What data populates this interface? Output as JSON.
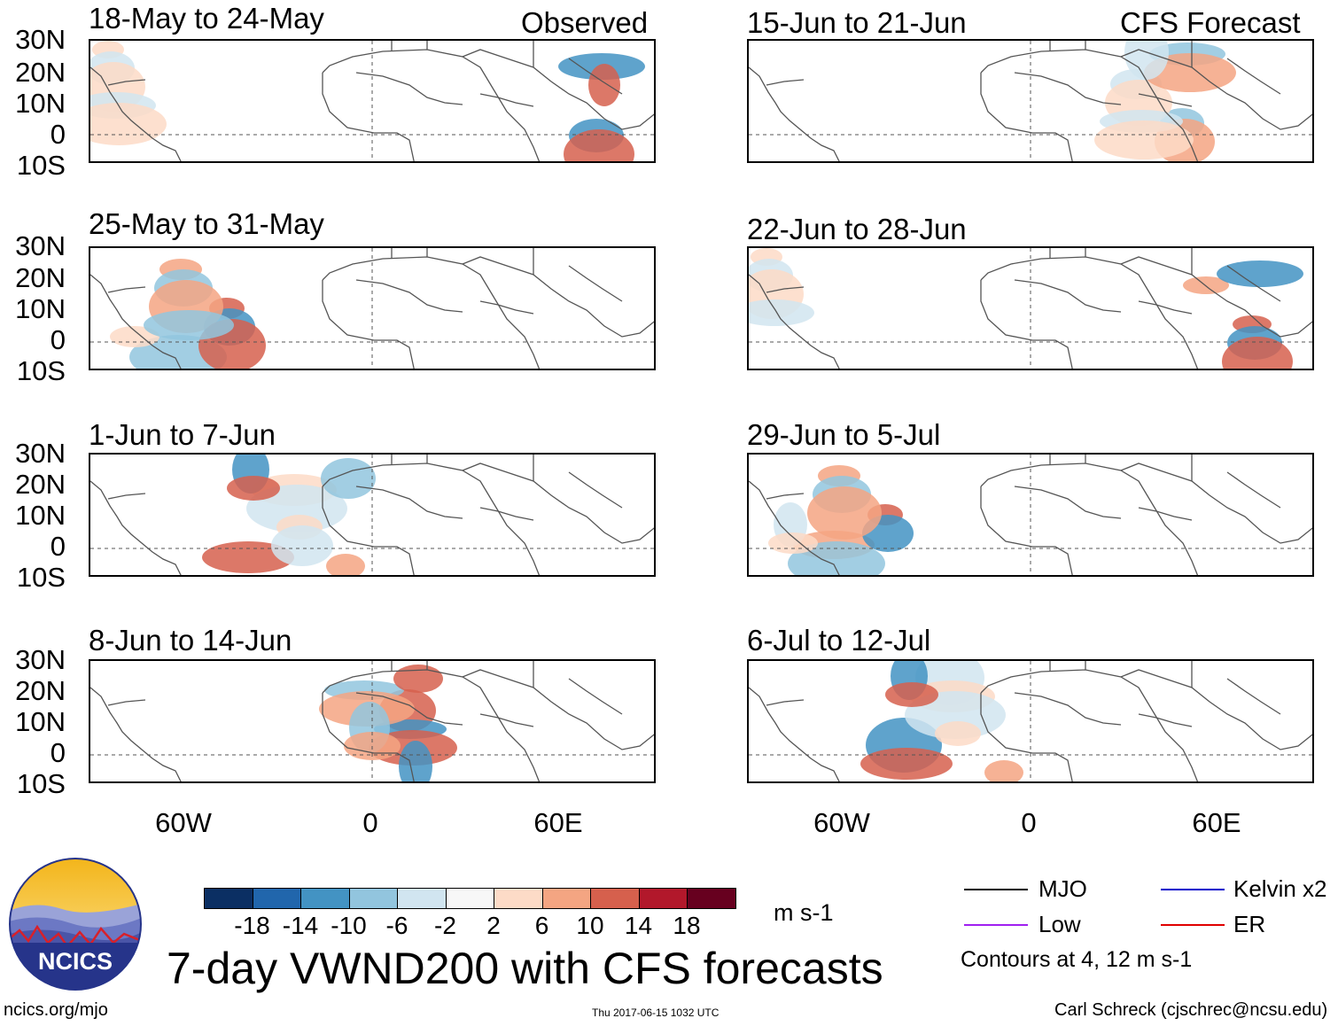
{
  "figure": {
    "main_title": "7-day VWND200 with CFS forecasts",
    "units": "m s-1",
    "url": "ncics.org/mjo",
    "timestamp": "Thu 2017-06-15 1032 UTC",
    "author": "Carl Schreck (cjschrec@ncsu.edu)",
    "logo_text": "NCICS"
  },
  "columns": {
    "observed_label": "Observed",
    "forecast_label": "CFS Forecast"
  },
  "panels_observed": [
    {
      "title": "18-May to 24-May"
    },
    {
      "title": "25-May to 31-May"
    },
    {
      "title": "1-Jun to 7-Jun"
    },
    {
      "title": "8-Jun to 14-Jun"
    }
  ],
  "panels_forecast": [
    {
      "title": "15-Jun to 21-Jun"
    },
    {
      "title": "22-Jun to 28-Jun"
    },
    {
      "title": "29-Jun to 5-Jul"
    },
    {
      "title": "6-Jul to 12-Jul"
    }
  ],
  "lat_labels": [
    "30N",
    "20N",
    "10N",
    "0",
    "10S"
  ],
  "lon_labels": [
    "60W",
    "0",
    "60E"
  ],
  "colorbar": {
    "labels": [
      "-18",
      "-14",
      "-10",
      "-6",
      "-2",
      "2",
      "6",
      "10",
      "14",
      "18"
    ],
    "colors": [
      "#0b2f63",
      "#2166ac",
      "#4393c3",
      "#92c5de",
      "#d1e5f0",
      "#f7f7f7",
      "#fddbc7",
      "#f4a582",
      "#d6604d",
      "#b2182b",
      "#67001f"
    ]
  },
  "legend": {
    "items": [
      {
        "label": "MJO",
        "color": "#000000"
      },
      {
        "label": "Kelvin x2",
        "color": "#0000cc"
      },
      {
        "label": "Low",
        "color": "#a020f0"
      },
      {
        "label": "ER",
        "color": "#e00000"
      }
    ],
    "note": "Contours at 4, 12 m s-1"
  }
}
